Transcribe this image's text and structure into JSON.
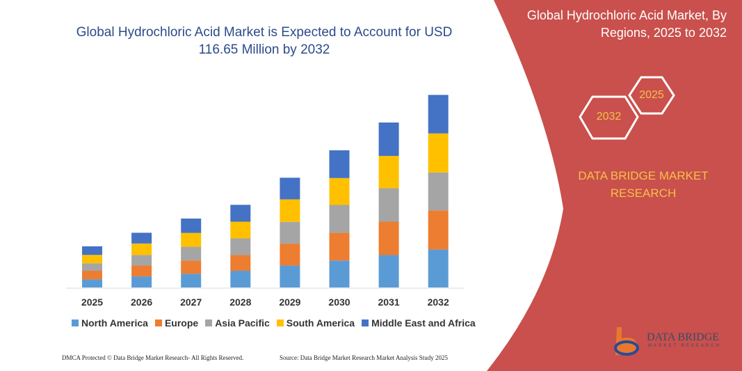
{
  "header": {
    "title": "Global Hydrochloric Acid Market is Expected to Account for USD 116.65 Million by 2032"
  },
  "side_panel": {
    "title": "Global Hydrochloric Acid Market, By Regions, 2025 to 2032",
    "hex_start": "2025",
    "hex_end": "2032",
    "brand": "DATA BRIDGE MARKET RESEARCH",
    "logo_text": "DATA BRIDGE",
    "logo_sub": "MARKET RESEARCH",
    "panel_color": "#c9504c",
    "accent_color": "#f5c04a"
  },
  "footer": {
    "left": "DMCA Protected © Data Bridge Market Research- All Rights Reserved.",
    "right": "Source: Data Bridge Market Research Market Analysis Study 2025"
  },
  "chart_data": {
    "type": "bar",
    "stacked": true,
    "title": "Global Hydrochloric Acid Market is Expected to Account for USD 116.65 Million by 2032",
    "xlabel": "",
    "ylabel": "",
    "ylim": [
      0,
      116.65
    ],
    "grid": false,
    "legend_position": "bottom",
    "categories": [
      "2025",
      "2026",
      "2027",
      "2028",
      "2029",
      "2030",
      "2031",
      "2032"
    ],
    "series": [
      {
        "name": "North America",
        "color": "#5b9bd5",
        "values": [
          4.9,
          6.7,
          8.3,
          10.1,
          13.3,
          16.3,
          19.6,
          23.0
        ]
      },
      {
        "name": "Europe",
        "color": "#ed7d31",
        "values": [
          5.2,
          6.6,
          8.0,
          9.5,
          13.2,
          16.8,
          20.2,
          23.6
        ]
      },
      {
        "name": "Asia Pacific",
        "color": "#a5a5a5",
        "values": [
          4.5,
          6.3,
          8.3,
          10.1,
          13.2,
          16.8,
          20.2,
          23.0
        ]
      },
      {
        "name": "South America",
        "color": "#ffc000",
        "values": [
          5.1,
          7.0,
          8.4,
          10.1,
          13.6,
          16.3,
          19.6,
          23.6
        ]
      },
      {
        "name": "Middle East and Africa",
        "color": "#4472c4",
        "values": [
          5.2,
          6.5,
          8.7,
          10.2,
          13.1,
          16.8,
          20.2,
          23.3
        ]
      }
    ]
  }
}
